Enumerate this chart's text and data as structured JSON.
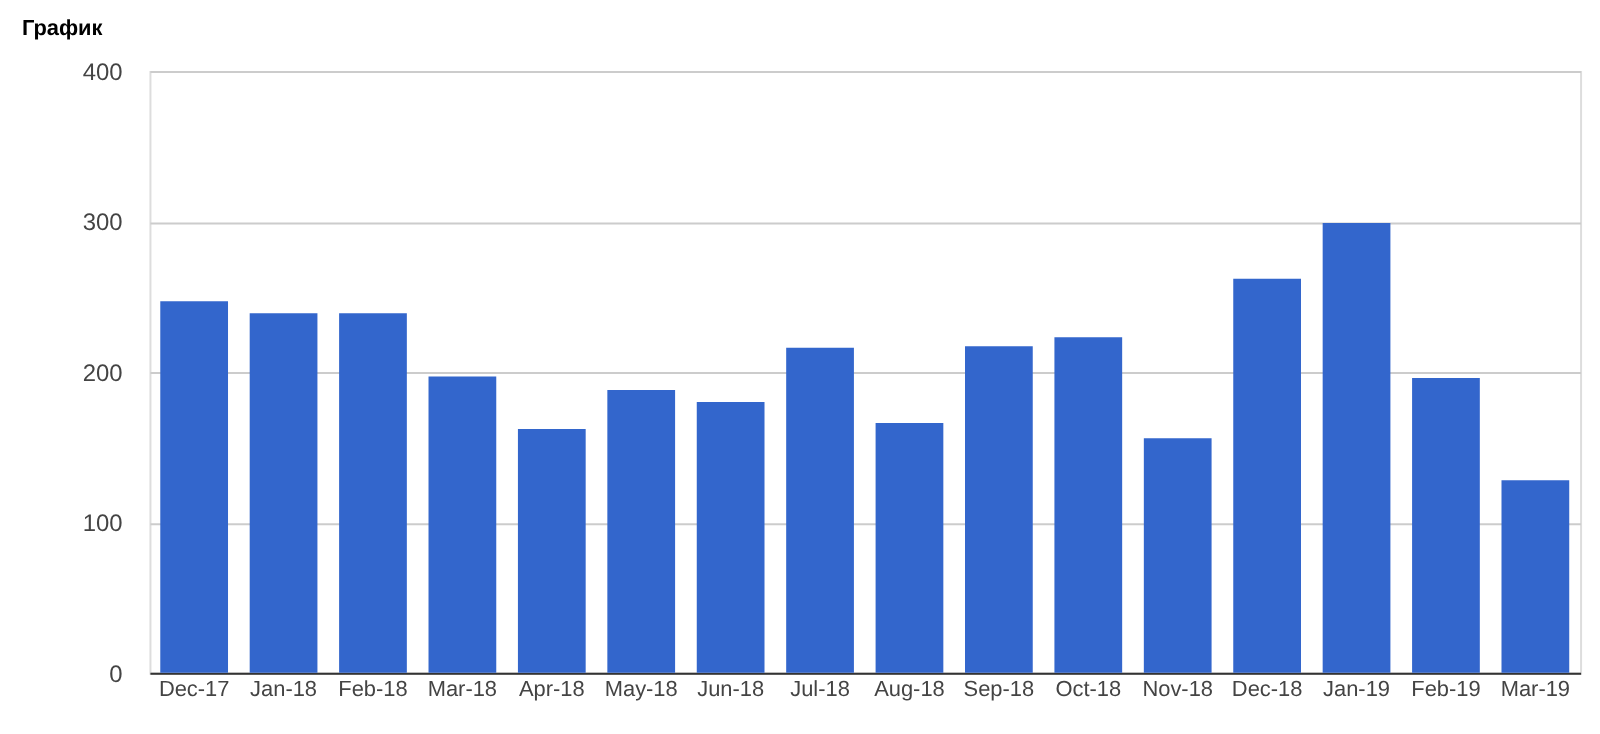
{
  "chart_data": {
    "type": "bar",
    "title": "График",
    "categories": [
      "Dec-17",
      "Jan-18",
      "Feb-18",
      "Mar-18",
      "Apr-18",
      "May-18",
      "Jun-18",
      "Jul-18",
      "Aug-18",
      "Sep-18",
      "Oct-18",
      "Nov-18",
      "Dec-18",
      "Jan-19",
      "Feb-19",
      "Mar-19"
    ],
    "values": [
      247,
      239,
      239,
      197,
      162,
      188,
      180,
      216,
      166,
      217,
      223,
      156,
      262,
      299,
      196,
      128
    ],
    "color": "#3366cc",
    "ylim": [
      0,
      400
    ],
    "yticks": [
      0,
      100,
      200,
      300,
      400
    ],
    "grid": "y"
  }
}
